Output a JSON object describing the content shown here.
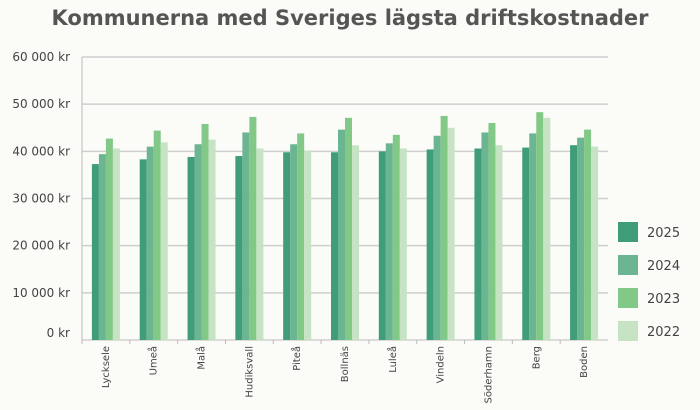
{
  "chart_data": {
    "type": "bar",
    "title": "Kommunerna med Sveriges lägsta driftskostnader",
    "categories": [
      "Lycksele",
      "Umeå",
      "Malå",
      "Hudiksvall",
      "Piteå",
      "Bollnäs",
      "Luleå",
      "Vindeln",
      "Söderhamn",
      "Berg",
      "Boden"
    ],
    "series": [
      {
        "name": "2025",
        "color": "#3f9d78",
        "values": [
          37300,
          38300,
          38800,
          39000,
          39800,
          39800,
          40000,
          40400,
          40600,
          40800,
          41300
        ]
      },
      {
        "name": "2024",
        "color": "#6cb593",
        "values": [
          39400,
          41000,
          41500,
          44000,
          41500,
          44600,
          41700,
          43300,
          44000,
          43800,
          42900
        ]
      },
      {
        "name": "2023",
        "color": "#82c886",
        "values": [
          42700,
          44400,
          45800,
          47300,
          43800,
          47100,
          43500,
          47500,
          46000,
          48300,
          44600
        ]
      },
      {
        "name": "2022",
        "color": "#c6e3c4",
        "values": [
          40600,
          41900,
          42500,
          40600,
          40200,
          41300,
          40600,
          45000,
          41300,
          47100,
          41000
        ]
      }
    ],
    "yticks": [
      "0 kr",
      "10 000 kr",
      "20 000 kr",
      "30 000 kr",
      "40 000 kr",
      "50 000 kr",
      "60 000 kr"
    ],
    "ylim": [
      0,
      60000
    ],
    "grid": true,
    "legend": "right"
  }
}
